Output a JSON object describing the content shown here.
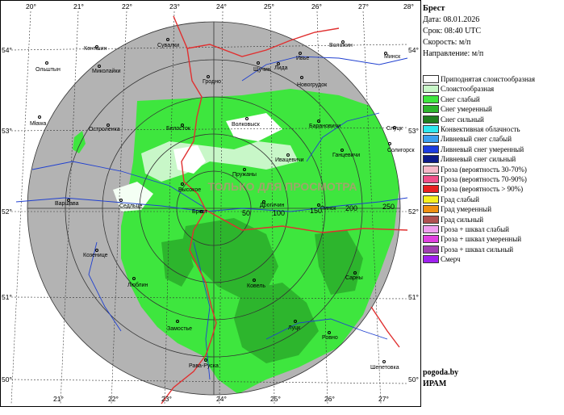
{
  "header": {
    "station": "Брест",
    "date": "Дата: 08.01.2026",
    "term": "Срок: 08:40 UTC",
    "speed": "Скорость: м/п",
    "direction": "Направление: м/п"
  },
  "legend": [
    {
      "label": "Приподнятая слоистообразная",
      "color": "#ffffff"
    },
    {
      "label": "Слоистообразная",
      "color": "#c8f7c8"
    },
    {
      "label": "Снег слабый",
      "color": "#3ee63e"
    },
    {
      "label": "Снег умеренный",
      "color": "#2db52d"
    },
    {
      "label": "Снег сильный",
      "color": "#1f7f1f"
    },
    {
      "label": "Конвективная облачность",
      "color": "#2ee8f0"
    },
    {
      "label": "Ливневый снег слабый",
      "color": "#3ca0f0"
    },
    {
      "label": "Ливневый снег умеренный",
      "color": "#1c3ce0"
    },
    {
      "label": "Ливневый снег сильный",
      "color": "#0c1a8a"
    },
    {
      "label": "Гроза (вероятность 30-70%)",
      "color": "#f7b8c8"
    },
    {
      "label": "Гроза (вероятность 70-90%)",
      "color": "#f0508a"
    },
    {
      "label": "Гроза (вероятность > 90%)",
      "color": "#e82020"
    },
    {
      "label": "Град слабый",
      "color": "#f7f020"
    },
    {
      "label": "Град умеренный",
      "color": "#f09010"
    },
    {
      "label": "Град сильный",
      "color": "#b05050"
    },
    {
      "label": "Гроза + шквал слабый",
      "color": "#f0a0f0"
    },
    {
      "label": "Гроза + шквал умеренный",
      "color": "#e040e0"
    },
    {
      "label": "Гроза + шквал сильный",
      "color": "#a040b0"
    },
    {
      "label": "Смерч",
      "color": "#a020f0"
    }
  ],
  "footer": {
    "site": "pogoda.by",
    "org": "ИРАМ"
  },
  "watermark": "ТОЛЬКО ДЛЯ ПРОСМОТРА",
  "map": {
    "lon_top": [
      "20°",
      "21°",
      "22°",
      "23°",
      "24°",
      "25°",
      "26°",
      "27°",
      "28°"
    ],
    "lon_bottom": [
      "21°",
      "22°",
      "23°",
      "24°",
      "25°",
      "26°",
      "27°"
    ],
    "lat_left": [
      "54°",
      "53°",
      "52°",
      "51°",
      "50°"
    ],
    "lat_right": [
      "54°",
      "53°",
      "52°",
      "51°",
      "50°"
    ],
    "range_labels": [
      "50",
      "100",
      "150",
      "200",
      "250"
    ],
    "cities": [
      "Сувалки",
      "Кентшин",
      "Ольштын",
      "Миколайки",
      "Гродно",
      "Щучин",
      "Лида",
      "Ивье",
      "Воложин",
      "Минск",
      "Новогрудок",
      "Мława",
      "Остроленка",
      "Белосток",
      "Волковыск",
      "Барановичи",
      "Слуцк",
      "Солигорск",
      "Ивацевичи",
      "Ганцевичи",
      "Пружаны",
      "Высокое",
      "Седльце",
      "Варшава",
      "Брест",
      "Дрогичин",
      "Пинск",
      "Козенице",
      "Люблин",
      "Ковель",
      "Сарны",
      "Замостье",
      "Луцк",
      "Ровно",
      "Рава-Руска",
      "Шепетовка"
    ]
  },
  "colors": {
    "ring_gray": "#b3b3b3",
    "snow_light": "#3ee63e",
    "snow_moderate": "#2db52d",
    "stratiform": "#c8f7c8",
    "border": "#e03030",
    "river": "#2040d0"
  }
}
